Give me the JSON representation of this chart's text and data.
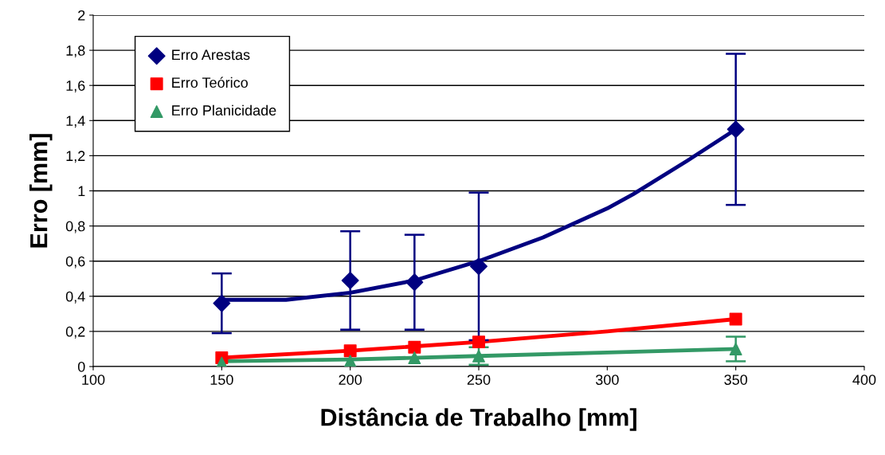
{
  "chart_data": {
    "type": "scatter",
    "xlabel": "Distância de Trabalho [mm]",
    "ylabel": "Erro [mm]",
    "xlim": [
      100,
      400
    ],
    "xticks": [
      100,
      150,
      200,
      250,
      300,
      350,
      400
    ],
    "ylim": [
      0,
      2
    ],
    "yticks": [
      0,
      {
        "value": 0.2,
        "label": "0,2"
      },
      {
        "value": 0.4,
        "label": "0,4"
      },
      {
        "value": 0.6,
        "label": "0,6"
      },
      {
        "value": 0.8,
        "label": "0,8"
      },
      1,
      {
        "value": 1.2,
        "label": "1,2"
      },
      {
        "value": 1.4,
        "label": "1,4"
      },
      {
        "value": 1.6,
        "label": "1,6"
      },
      {
        "value": 1.8,
        "label": "1,8"
      },
      2
    ],
    "grid": "y",
    "legend": "top left",
    "series": [
      {
        "type": "line",
        "color": "#000080",
        "marker": "none",
        "x": [
          150,
          175,
          200,
          225,
          250,
          275,
          300,
          310,
          331,
          350
        ],
        "values": [
          0.38,
          0.38,
          0.42,
          0.49,
          0.6,
          0.735,
          0.9,
          0.98,
          1.17,
          1.35
        ]
      },
      {
        "type": "line",
        "color": "#ff0000",
        "marker": "none",
        "x": [
          150,
          200,
          250,
          300,
          350
        ],
        "values": [
          0.05,
          0.09,
          0.14,
          0.2,
          0.27
        ]
      },
      {
        "type": "line",
        "color": "#339966",
        "marker": "none",
        "x": [
          150,
          200,
          250,
          300,
          350
        ],
        "values": [
          0.03,
          0.04,
          0.06,
          0.08,
          0.1
        ]
      },
      {
        "name": "Erro Arestas",
        "color": "#000080",
        "marker": "diamond",
        "x": [
          150,
          200,
          225,
          250,
          350
        ],
        "values": [
          0.36,
          0.49,
          0.48,
          0.57,
          1.35
        ],
        "errors": [
          [
            0.19,
            0.53
          ],
          [
            0.21,
            0.77
          ],
          [
            0.21,
            0.75
          ],
          0.42,
          [
            0.92,
            1.78
          ]
        ]
      },
      {
        "name": "Erro Teórico",
        "color": "#ff0000",
        "marker": "square",
        "x": [
          150,
          200,
          225,
          250,
          350
        ],
        "values": [
          0.05,
          0.09,
          0.11,
          0.14,
          0.27
        ]
      },
      {
        "name": "Erro Planicidade",
        "color": "#339966",
        "marker": "triangle",
        "x": [
          150,
          200,
          225,
          250,
          350
        ],
        "values": [
          0.02,
          0.03,
          0.05,
          0.06,
          0.1
        ],
        "errors": [
          null,
          null,
          null,
          [
            0.01,
            0.11
          ],
          [
            0.03,
            0.17
          ]
        ]
      }
    ]
  }
}
